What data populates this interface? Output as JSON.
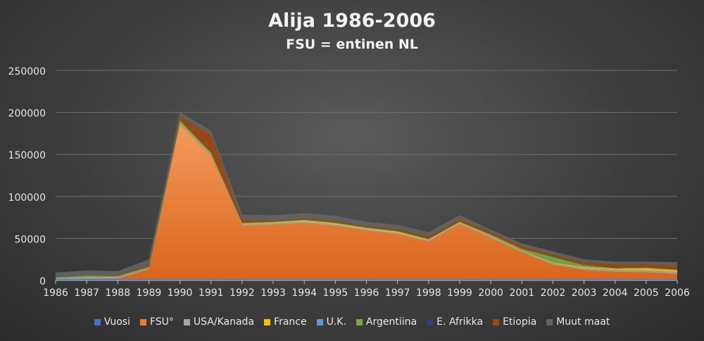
{
  "chart_data": {
    "type": "area",
    "stacked": true,
    "title": "Alija 1986-2006",
    "subtitle": "FSU = entinen NL",
    "x": [
      "1986",
      "1987",
      "1988",
      "1989",
      "1990",
      "1991",
      "1992",
      "1993",
      "1994",
      "1995",
      "1996",
      "1997",
      "1998",
      "1999",
      "2000",
      "2001",
      "2002",
      "2003",
      "2004",
      "2005",
      "2006"
    ],
    "ylim": [
      0,
      250000
    ],
    "yticks": [
      "0",
      "50000",
      "100000",
      "150000",
      "200000",
      "250000"
    ],
    "grid": true,
    "legend_position": "bottom",
    "series": [
      {
        "name": "Vuosi",
        "color": "#4472c4",
        "values": [
          1986,
          1987,
          1988,
          1989,
          1990,
          1991,
          1992,
          1993,
          1994,
          1995,
          1996,
          1997,
          1998,
          1999,
          2000,
          2001,
          2002,
          2003,
          2004,
          2005,
          2006
        ]
      },
      {
        "name": "FSU°",
        "color": "#ed7d31",
        "values": [
          200,
          2100,
          2200,
          12900,
          185200,
          147800,
          65100,
          66100,
          68100,
          64800,
          59000,
          54600,
          46000,
          66800,
          50800,
          33600,
          18500,
          12400,
          10100,
          9400,
          7500
        ]
      },
      {
        "name": "USA/Kanada",
        "color": "#a5a5a5",
        "values": [
          1900,
          1700,
          1600,
          1400,
          1500,
          1500,
          1500,
          1600,
          1700,
          1600,
          1600,
          1600,
          1500,
          1500,
          1500,
          1300,
          1700,
          2000,
          2200,
          2300,
          2500
        ]
      },
      {
        "name": "France",
        "color": "#ffc000",
        "values": [
          500,
          500,
          500,
          600,
          1200,
          1200,
          1100,
          1300,
          1700,
          1600,
          1600,
          1900,
          1200,
          1100,
          1100,
          1000,
          1300,
          1800,
          1700,
          2900,
          2200
        ]
      },
      {
        "name": "U.K.",
        "color": "#5b9bd5",
        "values": [
          500,
          500,
          400,
          400,
          500,
          500,
          500,
          500,
          500,
          500,
          500,
          400,
          400,
          400,
          400,
          400,
          400,
          500,
          400,
          500,
          500
        ]
      },
      {
        "name": "Argentiina",
        "color": "#70ad47",
        "values": [
          1000,
          1100,
          900,
          1200,
          2500,
          1400,
          500,
          500,
          500,
          500,
          500,
          500,
          400,
          400,
          1000,
          1400,
          6000,
          1500,
          500,
          400,
          300
        ]
      },
      {
        "name": "E. Afrikka",
        "color": "#264478",
        "values": [
          100,
          100,
          100,
          100,
          100,
          200,
          100,
          100,
          100,
          100,
          100,
          100,
          100,
          100,
          100,
          100,
          100,
          100,
          100,
          100,
          100
        ]
      },
      {
        "name": "Etiopia",
        "color": "#9e480e",
        "values": [
          200,
          200,
          500,
          1400,
          4100,
          20000,
          3500,
          900,
          1300,
          1400,
          1300,
          1700,
          2900,
          2300,
          2400,
          3300,
          2700,
          3000,
          3700,
          3600,
          3600
        ]
      },
      {
        "name": "Muut maat",
        "color": "#636363",
        "values": [
          5000,
          5700,
          5000,
          7000,
          5300,
          6100,
          6400,
          6400,
          6300,
          6400,
          5200,
          5500,
          4900,
          5100,
          3300,
          2900,
          3800,
          3900,
          3700,
          3100,
          5100
        ]
      }
    ]
  }
}
